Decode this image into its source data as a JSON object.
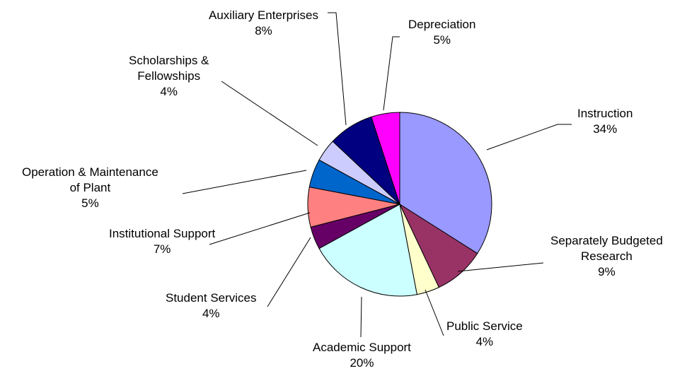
{
  "chart_data": {
    "type": "pie",
    "title": "",
    "start": "top, clockwise",
    "slices": [
      {
        "name": "Instruction",
        "name_lines": [
          "Instruction"
        ],
        "pct_label": "34%",
        "value": 34,
        "color": "#9999FF"
      },
      {
        "name": "Separately Budgeted Research",
        "name_lines": [
          "Separately Budgeted",
          "Research"
        ],
        "pct_label": "9%",
        "value": 9,
        "color": "#993366"
      },
      {
        "name": "Public Service",
        "name_lines": [
          "Public Service"
        ],
        "pct_label": "4%",
        "value": 4,
        "color": "#FFFFCC"
      },
      {
        "name": "Academic Support",
        "name_lines": [
          "Academic Support"
        ],
        "pct_label": "20%",
        "value": 20,
        "color": "#CCFFFF"
      },
      {
        "name": "Student Services",
        "name_lines": [
          "Student Services"
        ],
        "pct_label": "4%",
        "value": 4,
        "color": "#660066"
      },
      {
        "name": "Institutional Support",
        "name_lines": [
          "Institutional Support"
        ],
        "pct_label": "7%",
        "value": 7,
        "color": "#FF8080"
      },
      {
        "name": "Operation & Maintenance of Plant",
        "name_lines": [
          "Operation & Maintenance",
          "of Plant"
        ],
        "pct_label": "5%",
        "value": 5,
        "color": "#0066CC"
      },
      {
        "name": "Scholarships & Fellowships",
        "name_lines": [
          "Scholarships &",
          "Fellowships"
        ],
        "pct_label": "4%",
        "value": 4,
        "color": "#CCCCFF"
      },
      {
        "name": "Auxiliary Enterprises",
        "name_lines": [
          "Auxiliary Enterprises"
        ],
        "pct_label": "8%",
        "value": 8,
        "color": "#000080"
      },
      {
        "name": "Depreciation",
        "name_lines": [
          "Depreciation"
        ],
        "pct_label": "5%",
        "value": 5,
        "color": "#FF00FF"
      }
    ]
  }
}
